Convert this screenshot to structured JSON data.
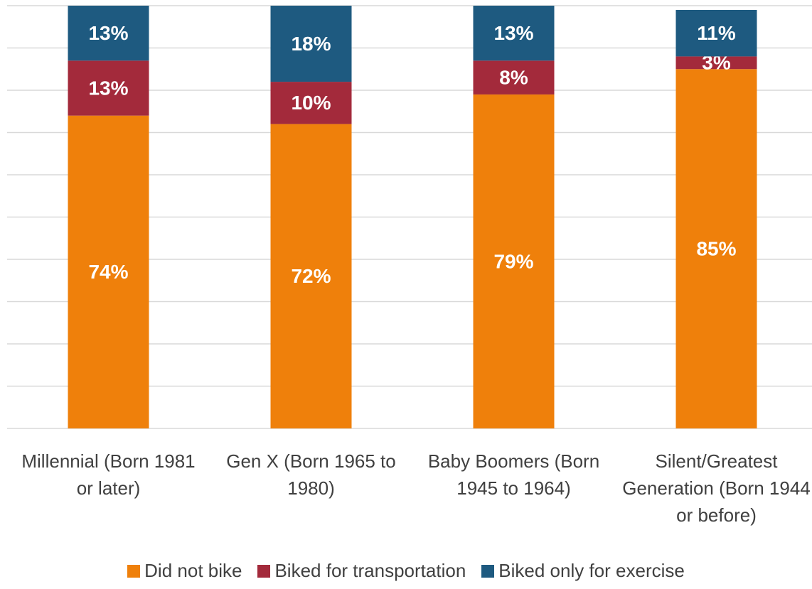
{
  "chart_data": {
    "type": "bar",
    "stacked": true,
    "categories": [
      "Millennial (Born 1981 or later)",
      "Gen X (Born 1965 to 1980)",
      "Baby Boomers (Born 1945 to 1964)",
      "Silent/Greatest Generation (Born 1944 or before)"
    ],
    "series": [
      {
        "name": "Did not bike",
        "color": "#ef800b",
        "values": [
          74,
          72,
          79,
          85
        ],
        "value_labels": [
          "74%",
          "72%",
          "79%",
          "85%"
        ]
      },
      {
        "name": "Biked for transportation",
        "color": "#a32a3b",
        "values": [
          13,
          10,
          8,
          3
        ],
        "value_labels": [
          "13%",
          "10%",
          "8%",
          "3%"
        ]
      },
      {
        "name": "Biked only for exercise",
        "color": "#1e5a80",
        "values": [
          13,
          18,
          13,
          11
        ],
        "value_labels": [
          "13%",
          "18%",
          "13%",
          "11%"
        ]
      }
    ],
    "ylim": [
      0,
      100
    ],
    "yticks": [
      0,
      10,
      20,
      30,
      40,
      50,
      60,
      70,
      80,
      90,
      100
    ],
    "grid": true,
    "legend": "bottom"
  }
}
